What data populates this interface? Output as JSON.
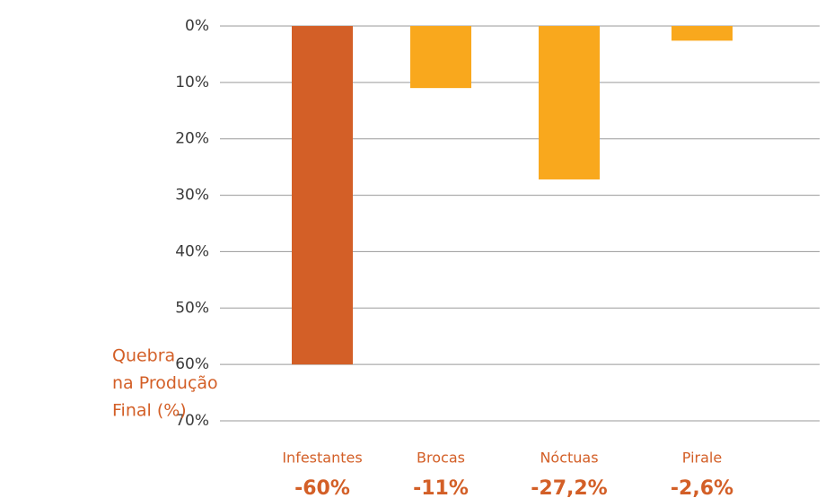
{
  "chart_data": {
    "type": "bar",
    "ylabel_lines": [
      "Quebra",
      "na Produção",
      "Final (%)"
    ],
    "categories": [
      "Infestantes",
      "Brocas",
      "Nóctuas",
      "Pirale"
    ],
    "values": [
      -60,
      -11,
      -27.2,
      -2.6
    ],
    "value_labels": [
      "-60%",
      "-11%",
      "-27,2%",
      "-2,6%"
    ],
    "colors": [
      "#d35f27",
      "#f9a81d",
      "#f9a81d",
      "#f9a81d"
    ],
    "ylim": [
      -70,
      0
    ],
    "yticks": [
      {
        "value": 0,
        "label": "0%"
      },
      {
        "value": -10,
        "label": "10%"
      },
      {
        "value": -20,
        "label": "20%"
      },
      {
        "value": -30,
        "label": "30%"
      },
      {
        "value": -40,
        "label": "40%"
      },
      {
        "value": -50,
        "label": "50%"
      },
      {
        "value": -60,
        "label": "60%"
      },
      {
        "value": -70,
        "label": "70%"
      }
    ],
    "grid": true
  }
}
